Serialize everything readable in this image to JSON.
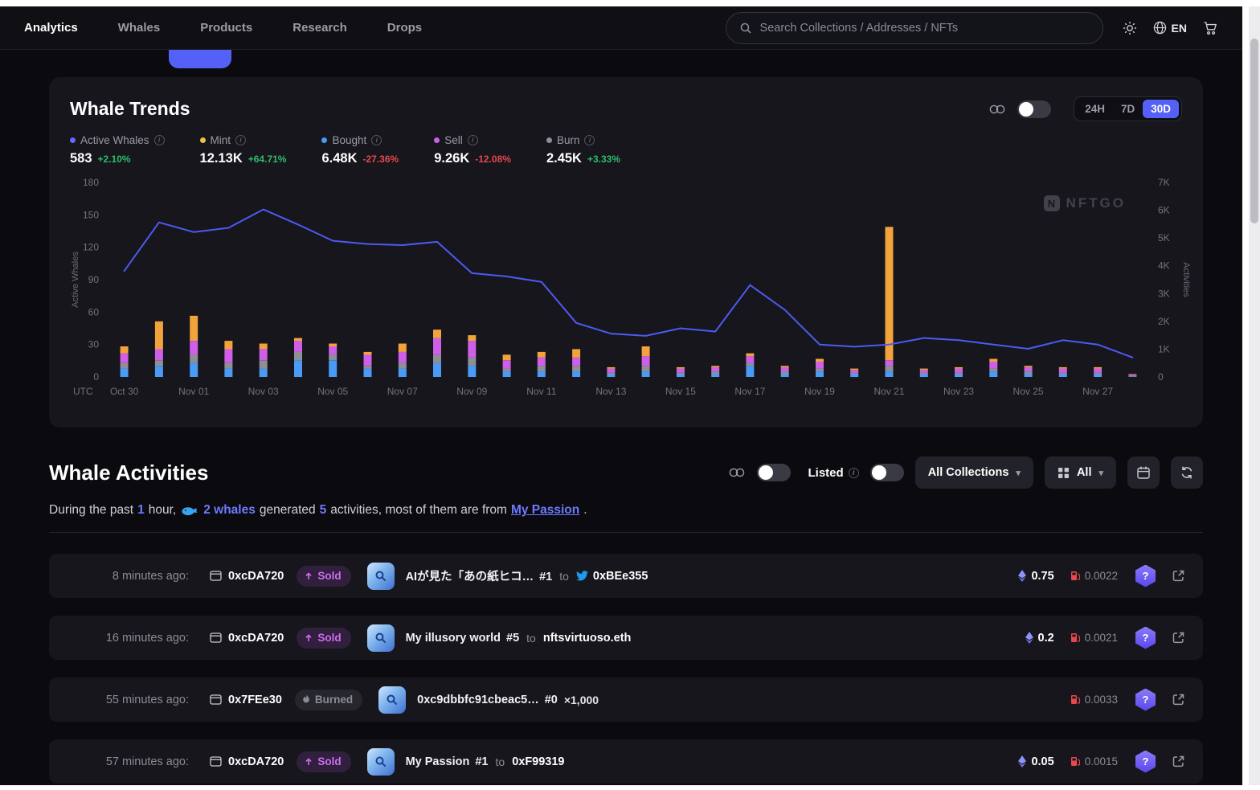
{
  "nav": {
    "items": [
      {
        "label": "Analytics",
        "active": true
      },
      {
        "label": "Whales",
        "active": false
      },
      {
        "label": "Products",
        "active": false
      },
      {
        "label": "Research",
        "active": false
      },
      {
        "label": "Drops",
        "active": false
      }
    ],
    "search_placeholder": "Search Collections / Addresses / NFTs",
    "language": "EN"
  },
  "icons": {
    "caret_down": "▾",
    "info": "i",
    "logo_letter": "N",
    "hex_glyph": "?"
  },
  "whale_trends": {
    "title": "Whale Trends",
    "watermark": "NFTGO",
    "time_ranges": [
      "24H",
      "7D",
      "30D"
    ],
    "active_range": "30D",
    "stats": [
      {
        "label": "Active Whales",
        "value": "583",
        "change": "+2.10%",
        "change_dir": "up",
        "color": "#5f6bfb"
      },
      {
        "label": "Mint",
        "value": "12.13K",
        "change": "+64.71%",
        "change_dir": "up",
        "color": "#ecc243"
      },
      {
        "label": "Bought",
        "value": "6.48K",
        "change": "-27.36%",
        "change_dir": "down",
        "color": "#4a9bf5"
      },
      {
        "label": "Sell",
        "value": "9.26K",
        "change": "-12.08%",
        "change_dir": "down",
        "color": "#cf5fe8"
      },
      {
        "label": "Burn",
        "value": "2.45K",
        "change": "+3.33%",
        "change_dir": "up",
        "color": "#8f8f98"
      }
    ]
  },
  "chart_data": {
    "type": "line+stacked-bar",
    "utc_label": "UTC",
    "x": [
      "Oct 30",
      "Oct 31",
      "Nov 01",
      "Nov 02",
      "Nov 03",
      "Nov 04",
      "Nov 05",
      "Nov 06",
      "Nov 07",
      "Nov 08",
      "Nov 09",
      "Nov 10",
      "Nov 11",
      "Nov 12",
      "Nov 13",
      "Nov 14",
      "Nov 15",
      "Nov 16",
      "Nov 17",
      "Nov 18",
      "Nov 19",
      "Nov 20",
      "Nov 21",
      "Nov 22",
      "Nov 23",
      "Nov 24",
      "Nov 25",
      "Nov 26",
      "Nov 27",
      "Nov 28"
    ],
    "x_label_every": 2,
    "left_axis": {
      "label": "Active Whales",
      "min": 0,
      "max": 180,
      "step": 30
    },
    "right_axis": {
      "label": "Activities",
      "min": 0,
      "max": 7000,
      "step": 1000
    },
    "line_series": {
      "name": "Active Whales",
      "color": "#4d5af2",
      "values": [
        98,
        143,
        134,
        138,
        155,
        141,
        126,
        123,
        122,
        125,
        96,
        93,
        88,
        50,
        40,
        38,
        45,
        42,
        85,
        62,
        30,
        28,
        30,
        36,
        34,
        30,
        26,
        34,
        30,
        18
      ]
    },
    "bar_stack_order": "bottom-to-top",
    "bar_series": [
      {
        "name": "Bought",
        "color": "#4a9bf5",
        "values": [
          300,
          400,
          500,
          300,
          300,
          600,
          600,
          300,
          300,
          500,
          400,
          200,
          200,
          200,
          100,
          200,
          100,
          100,
          400,
          100,
          200,
          100,
          200,
          100,
          100,
          200,
          100,
          100,
          100,
          20
        ]
      },
      {
        "name": "Burn",
        "color": "#8f8f98",
        "values": [
          200,
          200,
          300,
          200,
          300,
          300,
          200,
          100,
          200,
          300,
          300,
          100,
          200,
          200,
          50,
          200,
          50,
          100,
          100,
          100,
          100,
          50,
          200,
          50,
          50,
          100,
          100,
          50,
          50,
          20
        ]
      },
      {
        "name": "Sell",
        "color": "#cf5fe8",
        "values": [
          350,
          400,
          500,
          500,
          400,
          400,
          300,
          400,
          400,
          600,
          600,
          300,
          300,
          300,
          150,
          350,
          150,
          150,
          250,
          150,
          250,
          100,
          200,
          100,
          150,
          250,
          150,
          150,
          150,
          40
        ]
      },
      {
        "name": "Mint",
        "color": "#f2a33b",
        "values": [
          250,
          1000,
          900,
          300,
          200,
          100,
          100,
          100,
          300,
          300,
          200,
          200,
          200,
          300,
          50,
          350,
          50,
          50,
          100,
          50,
          100,
          50,
          4800,
          50,
          50,
          100,
          50,
          50,
          50,
          20
        ]
      }
    ]
  },
  "whale_activities": {
    "title": "Whale Activities",
    "controls": {
      "listed_label": "Listed",
      "collections_filter": "All Collections",
      "type_filter": "All"
    },
    "summary": {
      "prefix": "During the past",
      "duration": "1",
      "duration_unit": "hour,",
      "whales_link": "2 whales",
      "mid": "generated",
      "count": "5",
      "suffix": "activities, most of them are from",
      "collection_link": "My Passion",
      "end": "."
    },
    "rows": [
      {
        "time": "8 minutes ago:",
        "wallet": "0xcDA720",
        "action": "Sold",
        "action_type": "sold",
        "item_name": "AIが見た「あの紙ヒコ…",
        "item_id": "#1",
        "to_label": "to",
        "recipient": "0xBEe355",
        "recipient_twitter": true,
        "price_eth": "0.75",
        "gas": "0.0022"
      },
      {
        "time": "16 minutes ago:",
        "wallet": "0xcDA720",
        "action": "Sold",
        "action_type": "sold",
        "item_name": "My illusory world",
        "item_id": "#5",
        "to_label": "to",
        "recipient": "nftsvirtuoso.eth",
        "recipient_twitter": false,
        "price_eth": "0.2",
        "gas": "0.0021"
      },
      {
        "time": "55 minutes ago:",
        "wallet": "0x7FEe30",
        "action": "Burned",
        "action_type": "burned",
        "item_name": "0xc9dbbfc91cbeac5…",
        "item_id": "#0",
        "quantity": "×1,000",
        "gas": "0.0033"
      },
      {
        "time": "57 minutes ago:",
        "wallet": "0xcDA720",
        "action": "Sold",
        "action_type": "sold",
        "item_name": "My Passion",
        "item_id": "#1",
        "to_label": "to",
        "recipient": "0xF99319",
        "recipient_twitter": false,
        "price_eth": "0.05",
        "gas": "0.0015"
      }
    ]
  }
}
